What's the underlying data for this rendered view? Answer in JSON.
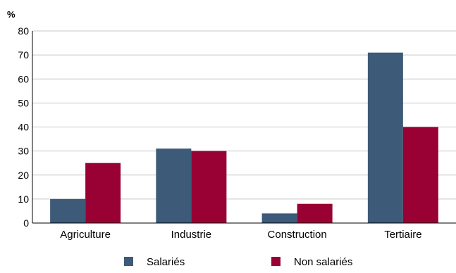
{
  "chart_data": {
    "type": "bar",
    "title": "",
    "xlabel": "",
    "ylabel": "%",
    "ylim": [
      0,
      80
    ],
    "yticks": [
      0,
      10,
      20,
      30,
      40,
      50,
      60,
      70,
      80
    ],
    "grid": true,
    "legend_position": "bottom-center",
    "categories": [
      "Agriculture",
      "Industrie",
      "Construction",
      "Tertiaire"
    ],
    "series": [
      {
        "name": "Salariés",
        "color": "#3d5a78",
        "values": [
          10,
          31,
          4,
          71
        ]
      },
      {
        "name": "Non salariés",
        "color": "#990033",
        "values": [
          25,
          30,
          8,
          40
        ]
      }
    ]
  }
}
